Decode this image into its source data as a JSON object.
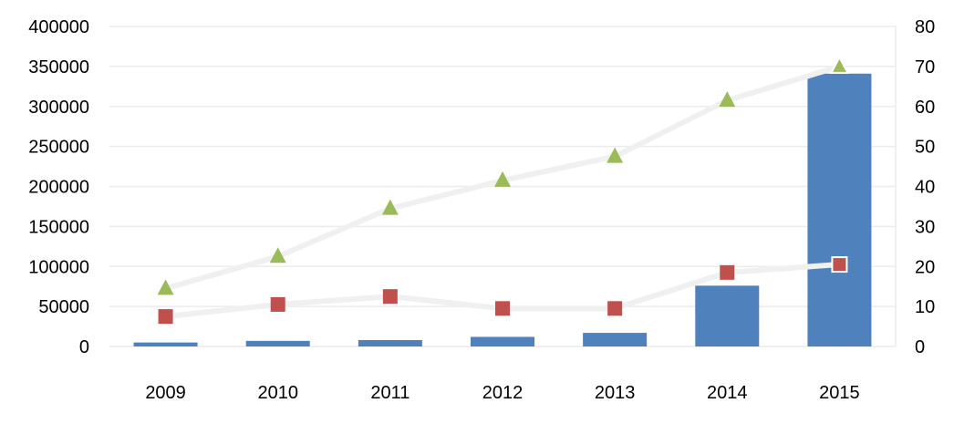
{
  "chart_data": {
    "type": "bar",
    "categories": [
      "2009",
      "2010",
      "2011",
      "2012",
      "2013",
      "2014",
      "2015"
    ],
    "bars": {
      "axis": "left",
      "values": [
        5000,
        7000,
        8000,
        12000,
        17000,
        76000,
        341000
      ],
      "color": "#4f81bd"
    },
    "lines": [
      {
        "axis": "right",
        "marker": "square",
        "color": "#c0504d",
        "line_color": "#f0f0f0",
        "values": [
          7.5,
          10.5,
          12.5,
          9.5,
          9.5,
          18.5,
          20.5
        ]
      },
      {
        "axis": "right",
        "marker": "triangle",
        "color": "#9bbb59",
        "line_color": "#f0f0f0",
        "values": [
          14.5,
          22.5,
          34.5,
          41.5,
          47.5,
          61.5,
          70
        ]
      }
    ],
    "ylim_left": [
      0,
      400000
    ],
    "yticks_left": [
      "0",
      "50000",
      "100000",
      "150000",
      "200000",
      "250000",
      "300000",
      "350000",
      "400000"
    ],
    "ylim_right": [
      0,
      80
    ],
    "yticks_right": [
      "0",
      "10",
      "20",
      "30",
      "40",
      "50",
      "60",
      "70",
      "80"
    ],
    "grid": true,
    "title": "",
    "xlabel": "",
    "ylabel": ""
  }
}
